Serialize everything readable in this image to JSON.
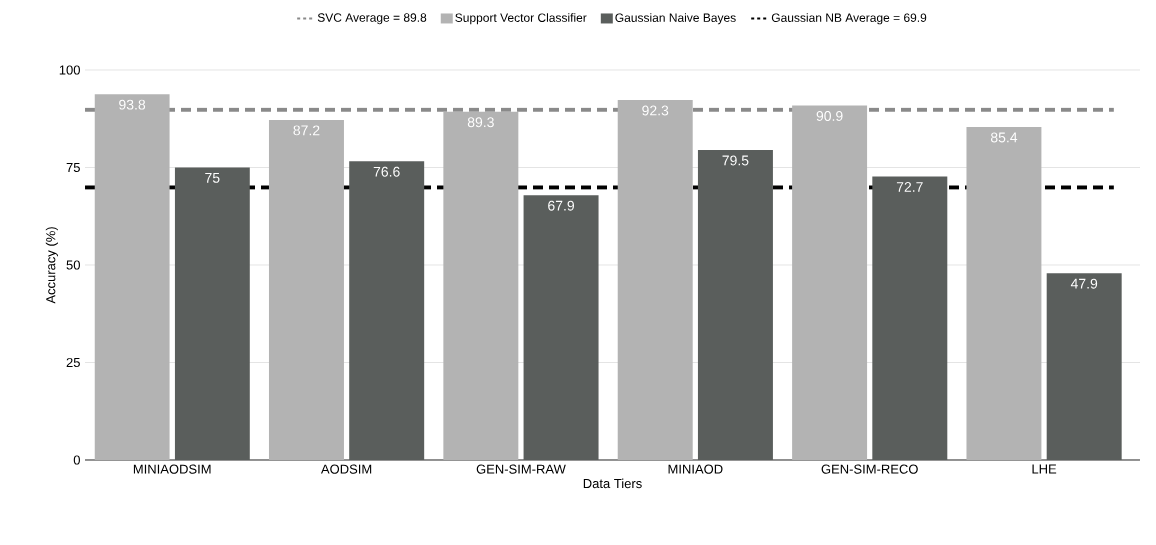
{
  "chart_data": {
    "type": "bar",
    "xlabel": "Data Tiers",
    "ylabel": "Accuracy (%)",
    "categories": [
      "MINIAODSIM",
      "AODSIM",
      "GEN-SIM-RAW",
      "MINIAOD",
      "GEN-SIM-RECO",
      "LHE"
    ],
    "series": [
      {
        "name": "Support Vector Classifier",
        "color": "#b3b3b3",
        "values": [
          93.8,
          87.2,
          89.3,
          92.3,
          90.9,
          85.4
        ]
      },
      {
        "name": "Gaussian Naive Bayes",
        "color": "#5a5e5c",
        "values": [
          75,
          76.6,
          67.9,
          79.5,
          72.7,
          47.9
        ]
      }
    ],
    "ref_lines": [
      {
        "axis": "y",
        "value": 89.8,
        "label": "SVC Average = 89.8",
        "color": "#8a8a8a",
        "line_style": "dashed"
      },
      {
        "axis": "y",
        "value": 69.9,
        "label": "Gaussian NB Average = 69.9",
        "color": "#000000",
        "line_style": "dashed"
      }
    ],
    "ylim": [
      0,
      100
    ],
    "yticks": [
      0,
      25,
      50,
      75,
      100
    ],
    "grid": "y",
    "legend": "top",
    "data_labels": true
  }
}
